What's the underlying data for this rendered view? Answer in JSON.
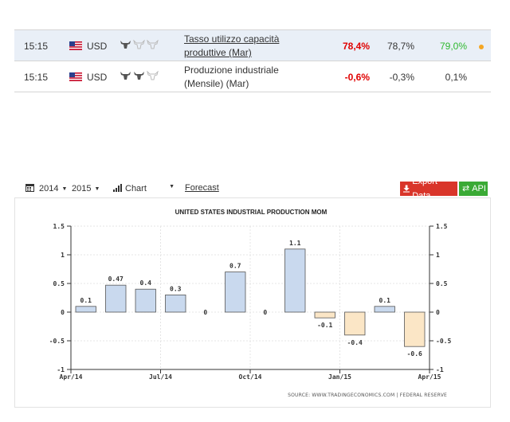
{
  "calendar": {
    "rows": [
      {
        "time": "15:15",
        "currency": "USD",
        "event": "Tasso utilizzo capacità produttive (Mar)",
        "actual": "78,4%",
        "forecast": "78,7%",
        "previous": "79,0%",
        "importance": 1
      },
      {
        "time": "15:15",
        "currency": "USD",
        "event": "Produzione industriale (Mensile) (Mar)",
        "actual": "-0,6%",
        "forecast": "-0,3%",
        "previous": "0,1%",
        "importance": 2
      }
    ],
    "colors": {
      "actual_negative": "#e00000",
      "previous_up": "#2eb82e",
      "highlight_row": "#e9eff7",
      "dot": "#f5a623"
    }
  },
  "toolbar": {
    "year_from": "2014",
    "year_to": "2015",
    "chart_type": "Chart",
    "forecast_link": "Forecast",
    "export_label": "Export Data",
    "api_label": "API",
    "colors": {
      "export": "#d9352a",
      "api": "#3aaa35"
    }
  },
  "chart_data": {
    "type": "bar",
    "title": "UNITED STATES INDUSTRIAL PRODUCTION MOM",
    "source": "SOURCE: WWW.TRADINGECONOMICS.COM | FEDERAL RESERVE",
    "x_tick_labels": [
      "Apr/14",
      "Jul/14",
      "Oct/14",
      "Jan/15",
      "Apr/15"
    ],
    "categories": [
      "Apr/14",
      "May/14",
      "Jun/14",
      "Jul/14",
      "Aug/14",
      "Sep/14",
      "Oct/14",
      "Nov/14",
      "Dec/14",
      "Jan/15",
      "Feb/15",
      "Mar/15"
    ],
    "values": [
      0.1,
      0.47,
      0.4,
      0.3,
      0,
      0.7,
      0,
      1.1,
      -0.1,
      -0.4,
      0.1,
      -0.6
    ],
    "value_labels": [
      "0.1",
      "0.47",
      "0.4",
      "0.3",
      "0",
      "0.7",
      "0",
      "1.1",
      "-0.1",
      "-0.4",
      "0.1",
      "-0.6"
    ],
    "ylim": [
      -1,
      1.5
    ],
    "y_ticks": [
      -1,
      -0.5,
      0,
      0.5,
      1,
      1.5
    ],
    "y_tick_labels": [
      "-1",
      "-0.5",
      "0",
      "0.5",
      "1",
      "1.5"
    ],
    "grid": true,
    "colors": {
      "positive_fill": "#c9d9ee",
      "negative_fill": "#fbe6c6",
      "bar_stroke": "#555555"
    }
  }
}
